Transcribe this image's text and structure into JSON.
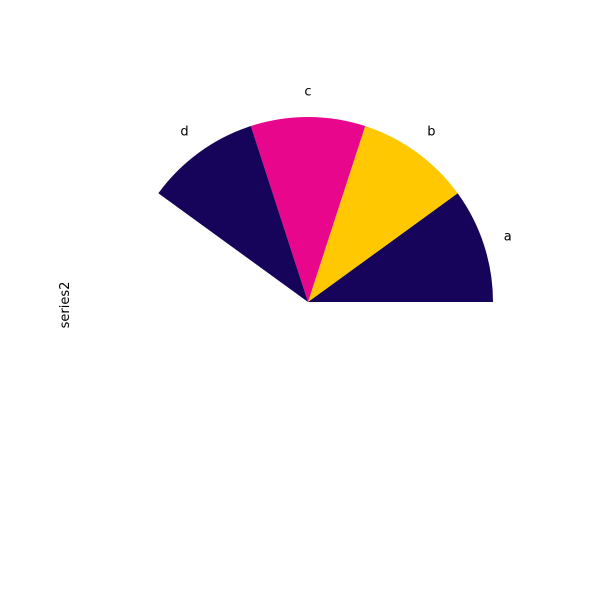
{
  "chart_data": {
    "type": "pie",
    "categories": [
      "a",
      "b",
      "c",
      "d"
    ],
    "series": [
      {
        "values": [
          1,
          1,
          1,
          1
        ]
      }
    ],
    "start_angle_deg": 0,
    "total_sweep_deg": 144,
    "colors": [
      "#16045a",
      "#ffc800",
      "#e8068c",
      "#16045a"
    ],
    "ylabel": "series2",
    "title": "",
    "legend": "none"
  }
}
